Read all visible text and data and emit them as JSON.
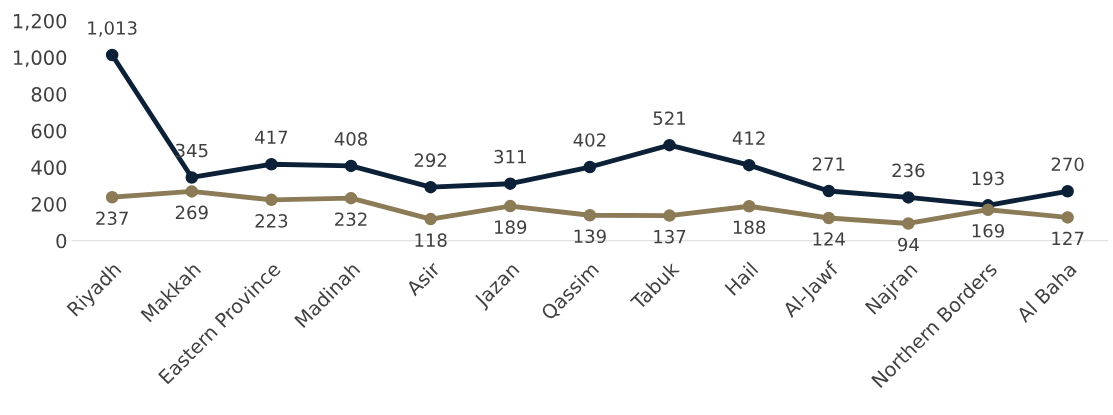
{
  "chart_data": {
    "type": "line",
    "categories": [
      "Riyadh",
      "Makkah",
      "Eastern Province",
      "Madinah",
      "Asir",
      "Jazan",
      "Qassim",
      "Tabuk",
      "Hail",
      "Al-Jawf",
      "Najran",
      "Northern Borders",
      "Al Baha"
    ],
    "series": [
      {
        "color": "#0c2138",
        "values": [
          1013,
          345,
          417,
          408,
          292,
          311,
          402,
          521,
          412,
          271,
          236,
          193,
          270
        ],
        "value_labels": [
          "1,013",
          "345",
          "417",
          "408",
          "292",
          "311",
          "402",
          "521",
          "412",
          "271",
          "236",
          "193",
          "270"
        ]
      },
      {
        "color": "#8c7b57",
        "values": [
          237,
          269,
          223,
          232,
          118,
          189,
          139,
          137,
          188,
          124,
          94,
          169,
          127
        ],
        "value_labels": [
          "237",
          "269",
          "223",
          "232",
          "118",
          "189",
          "139",
          "137",
          "188",
          "124",
          "94",
          "169",
          "127"
        ]
      }
    ],
    "ylim": [
      0,
      1200
    ],
    "yticks": [
      0,
      200,
      400,
      600,
      800,
      {
        "value": 1000,
        "label": "1,000"
      },
      {
        "value": 1200,
        "label": "1,200"
      }
    ],
    "grid": false,
    "marker": "circle",
    "line_style": "solid"
  }
}
